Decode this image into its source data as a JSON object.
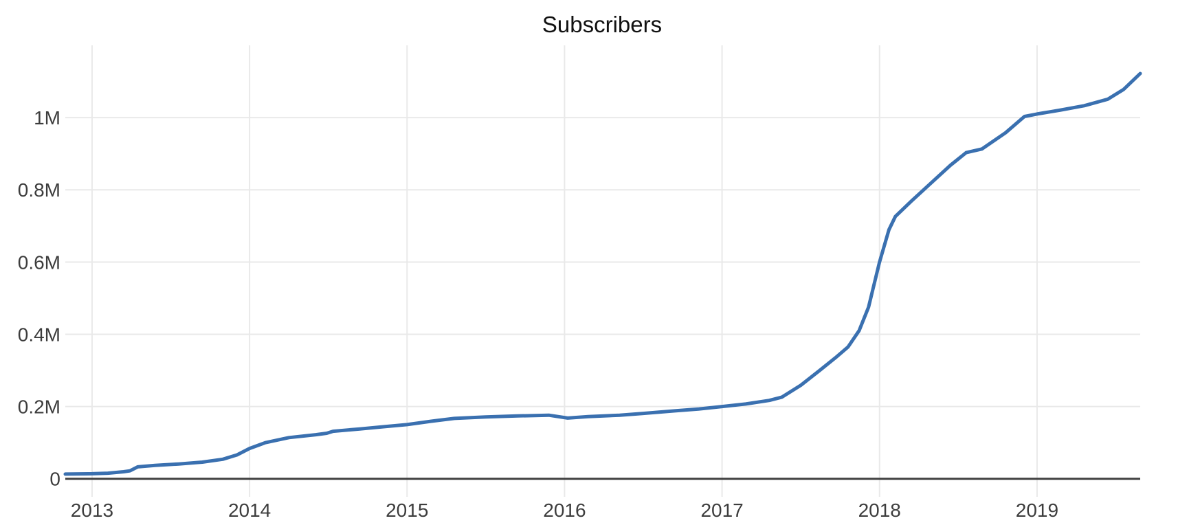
{
  "chart_data": {
    "type": "line",
    "title": "Subscribers",
    "xlabel": "",
    "ylabel": "",
    "legend": false,
    "grid": true,
    "x_range": [
      2012.83,
      2019.655
    ],
    "y_range": [
      -50000,
      1200000
    ],
    "x_ticks": [
      {
        "value": 2013,
        "label": "2013"
      },
      {
        "value": 2014,
        "label": "2014"
      },
      {
        "value": 2015,
        "label": "2015"
      },
      {
        "value": 2016,
        "label": "2016"
      },
      {
        "value": 2017,
        "label": "2017"
      },
      {
        "value": 2018,
        "label": "2018"
      },
      {
        "value": 2019,
        "label": "2019"
      }
    ],
    "y_ticks": [
      {
        "value": 0,
        "label": "0"
      },
      {
        "value": 200000,
        "label": "0.2M"
      },
      {
        "value": 400000,
        "label": "0.4M"
      },
      {
        "value": 600000,
        "label": "0.6M"
      },
      {
        "value": 800000,
        "label": "0.8M"
      },
      {
        "value": 1000000,
        "label": "1M"
      }
    ],
    "colors": {
      "line": "#3a70b0",
      "grid": "#e9e9e9",
      "zero_line": "#3f3f3f",
      "tick_label": "#3d3d3d",
      "title": "#111111",
      "background": "#ffffff"
    },
    "series": [
      {
        "name": "Subscribers",
        "color": "#3a70b0",
        "points": [
          [
            2012.83,
            13000
          ],
          [
            2013.0,
            14000
          ],
          [
            2013.1,
            15500
          ],
          [
            2013.2,
            19500
          ],
          [
            2013.24,
            22000
          ],
          [
            2013.29,
            33000
          ],
          [
            2013.4,
            37000
          ],
          [
            2013.55,
            41000
          ],
          [
            2013.7,
            46000
          ],
          [
            2013.83,
            54000
          ],
          [
            2013.92,
            66000
          ],
          [
            2014.0,
            84000
          ],
          [
            2014.1,
            100000
          ],
          [
            2014.25,
            114000
          ],
          [
            2014.42,
            122000
          ],
          [
            2014.49,
            126000
          ],
          [
            2014.53,
            131500
          ],
          [
            2014.7,
            138000
          ],
          [
            2014.85,
            144000
          ],
          [
            2015.0,
            150000
          ],
          [
            2015.15,
            159000
          ],
          [
            2015.3,
            167000
          ],
          [
            2015.5,
            171000
          ],
          [
            2015.7,
            174000
          ],
          [
            2015.9,
            176000
          ],
          [
            2016.02,
            168000
          ],
          [
            2016.15,
            172000
          ],
          [
            2016.35,
            176000
          ],
          [
            2016.5,
            181000
          ],
          [
            2016.7,
            188000
          ],
          [
            2016.85,
            193000
          ],
          [
            2017.0,
            200000
          ],
          [
            2017.15,
            207000
          ],
          [
            2017.3,
            217000
          ],
          [
            2017.38,
            226000
          ],
          [
            2017.5,
            259000
          ],
          [
            2017.62,
            300000
          ],
          [
            2017.72,
            335000
          ],
          [
            2017.8,
            365000
          ],
          [
            2017.87,
            410000
          ],
          [
            2017.93,
            475000
          ],
          [
            2018.0,
            600000
          ],
          [
            2018.06,
            690000
          ],
          [
            2018.1,
            726000
          ],
          [
            2018.2,
            768000
          ],
          [
            2018.33,
            820000
          ],
          [
            2018.45,
            868000
          ],
          [
            2018.55,
            903000
          ],
          [
            2018.65,
            913000
          ],
          [
            2018.8,
            958000
          ],
          [
            2018.92,
            1003000
          ],
          [
            2019.0,
            1010000
          ],
          [
            2019.15,
            1021000
          ],
          [
            2019.3,
            1033000
          ],
          [
            2019.45,
            1051000
          ],
          [
            2019.55,
            1078000
          ],
          [
            2019.655,
            1122000
          ]
        ]
      }
    ]
  }
}
